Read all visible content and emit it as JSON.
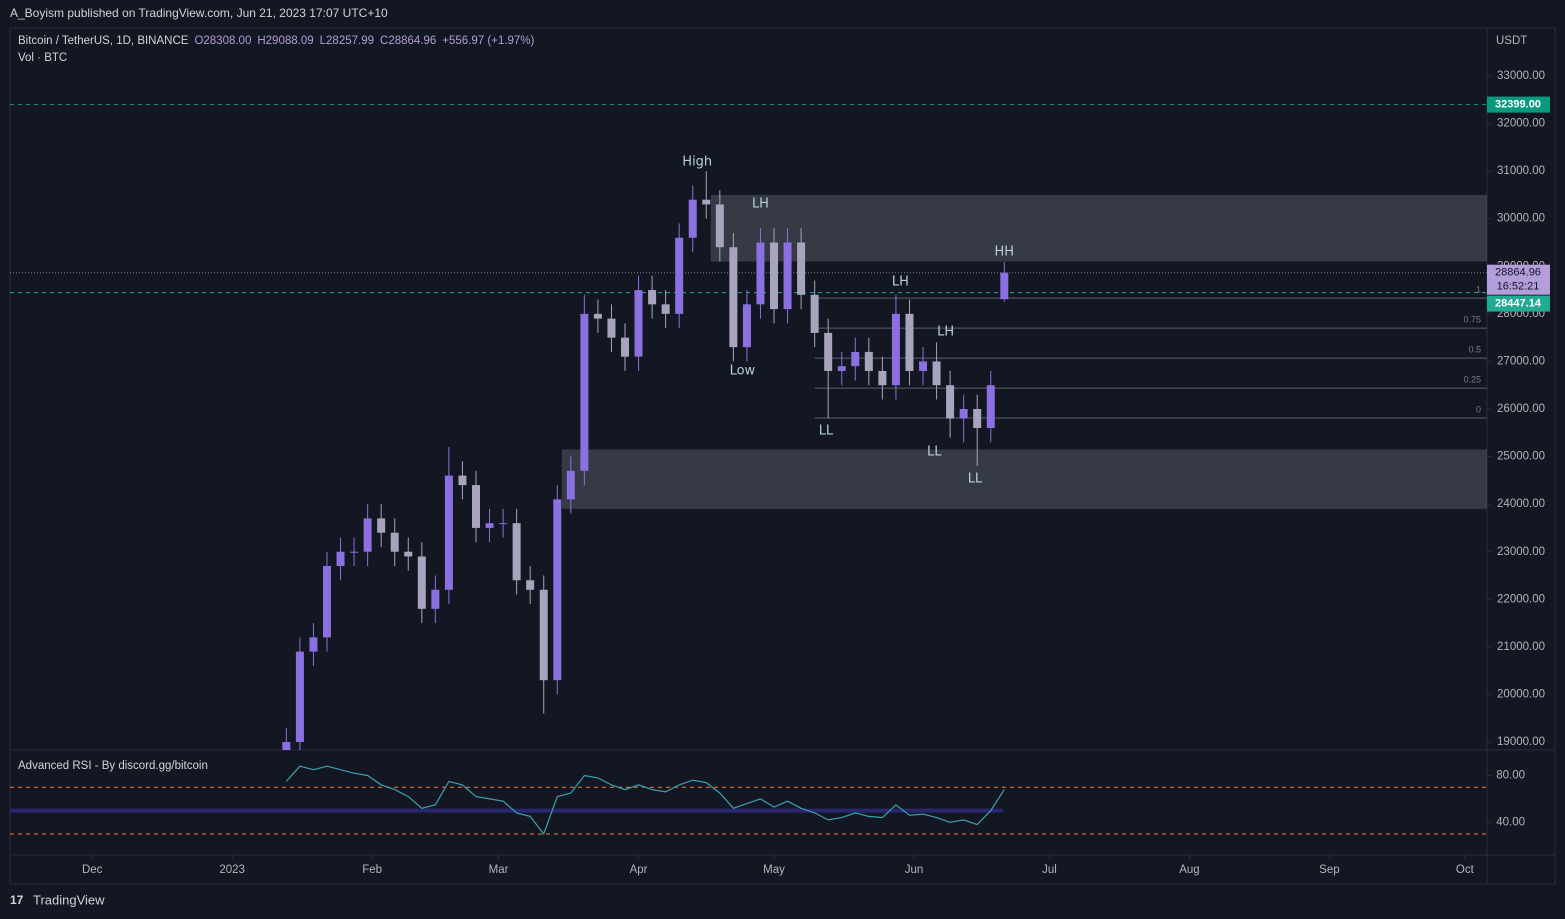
{
  "header": {
    "published": "A_Boyism published on TradingView.com, Jun 21, 2023 17:07 UTC+10"
  },
  "footer": {
    "brand": "TradingView"
  },
  "chart_data": [
    {
      "type": "candlestick",
      "symbol": "Bitcoin / TetherUS, 1D, BINANCE",
      "ohlc_legend": [
        "O28308.00",
        "H29088.09",
        "L28257.99",
        "C28864.96",
        "+556.97 (+1.97%)"
      ],
      "volume_label": "Vol · BTC",
      "axis_unit": "USDT",
      "up_color": "#8c6fe0",
      "down_color": "#a9a4bd",
      "x": [
        43,
        46,
        49,
        52,
        55,
        58,
        61,
        64,
        67,
        70,
        73,
        76,
        79,
        82,
        85,
        88,
        91,
        94,
        97,
        100,
        103,
        106,
        109,
        112,
        115,
        118,
        121,
        124,
        127,
        130,
        133,
        136,
        139,
        142,
        145,
        148,
        151,
        154,
        157,
        160,
        163,
        166,
        169,
        172,
        175,
        178,
        181,
        184,
        187,
        190,
        193,
        196,
        199,
        202
      ],
      "open": [
        18500,
        19000,
        20900,
        21200,
        22700,
        23000,
        23000,
        23700,
        23400,
        23000,
        22900,
        21800,
        22200,
        24600,
        24400,
        23500,
        23600,
        23600,
        22400,
        22200,
        20300,
        24100,
        24700,
        28000,
        27900,
        27500,
        27100,
        28500,
        28200,
        28000,
        29600,
        30400,
        30300,
        29400,
        27300,
        28200,
        29500,
        28100,
        29500,
        28400,
        27600,
        26800,
        26900,
        27200,
        26800,
        26500,
        28000,
        26800,
        27000,
        26500,
        25800,
        26000,
        25600,
        28308
      ],
      "high": [
        19300,
        21200,
        21500,
        23000,
        23300,
        23300,
        24000,
        24000,
        23700,
        23300,
        23200,
        22500,
        25200,
        24900,
        24700,
        23900,
        23900,
        23900,
        22700,
        22500,
        24400,
        25000,
        28400,
        28300,
        28200,
        27800,
        28800,
        28800,
        28500,
        29900,
        30700,
        31000,
        30600,
        29700,
        28500,
        29800,
        29800,
        29800,
        29800,
        28700,
        27900,
        27200,
        27500,
        27500,
        27100,
        28400,
        28300,
        27300,
        27400,
        26800,
        26300,
        26300,
        26800,
        29088.09
      ],
      "low": [
        18200,
        18700,
        20600,
        20900,
        22400,
        22700,
        22700,
        23100,
        22700,
        22600,
        21500,
        21500,
        21900,
        24100,
        23200,
        23200,
        23300,
        22100,
        21900,
        19600,
        20000,
        23800,
        24400,
        27600,
        27200,
        26800,
        26800,
        27900,
        27700,
        27700,
        29300,
        30000,
        29100,
        27000,
        27000,
        27900,
        27800,
        27800,
        28100,
        27300,
        25800,
        26500,
        26600,
        26500,
        26200,
        26200,
        26500,
        26500,
        26200,
        25400,
        25300,
        24800,
        25300,
        28257.99
      ],
      "close": [
        19000,
        20900,
        21200,
        22700,
        23000,
        23000,
        23700,
        23400,
        23000,
        22900,
        21800,
        22200,
        24600,
        24400,
        23500,
        23600,
        23600,
        22400,
        22200,
        20300,
        24100,
        24700,
        28000,
        27900,
        27500,
        27100,
        28500,
        28200,
        28000,
        29600,
        30400,
        30300,
        29400,
        27300,
        28200,
        29500,
        28100,
        29500,
        28400,
        27600,
        26800,
        26900,
        27200,
        26800,
        26500,
        28000,
        26800,
        27000,
        26500,
        25800,
        26000,
        25600,
        26500,
        28864.96
      ],
      "xlim": [
        -18.2,
        308.9
      ],
      "ylim": [
        18832,
        34009
      ],
      "yticks": [
        {
          "value": 19000,
          "label": "19000.00"
        },
        {
          "value": 20000,
          "label": "20000.00"
        },
        {
          "value": 21000,
          "label": "21000.00"
        },
        {
          "value": 22000,
          "label": "22000.00"
        },
        {
          "value": 23000,
          "label": "23000.00"
        },
        {
          "value": 24000,
          "label": "24000.00"
        },
        {
          "value": 25000,
          "label": "25000.00"
        },
        {
          "value": 26000,
          "label": "26000.00"
        },
        {
          "value": 27000,
          "label": "27000.00"
        },
        {
          "value": 28000,
          "label": "28000.00"
        },
        {
          "value": 29000,
          "label": "29000.00"
        },
        {
          "value": 30000,
          "label": "30000.00"
        },
        {
          "value": 31000,
          "label": "31000.00"
        },
        {
          "value": 32000,
          "label": "32000.00"
        },
        {
          "value": 33000,
          "label": "33000.00"
        }
      ],
      "zones": [
        {
          "from": 137,
          "top": 30500,
          "bottom": 29100
        },
        {
          "from": 104,
          "top": 25150,
          "bottom": 23900
        }
      ],
      "levels": [
        {
          "value": 32399,
          "label": "32399.00",
          "color": "#089981"
        },
        {
          "value": 28447.14,
          "label": "28447.14",
          "color": "#22ab94"
        }
      ],
      "last_price": {
        "value": 28864.96,
        "label": "28864.96",
        "timer": "16:52:21",
        "color": "#b39ddb"
      },
      "fib": {
        "from": 160,
        "levels": [
          {
            "value": 28330,
            "label": "1"
          },
          {
            "value": 27700,
            "label": "0.75"
          },
          {
            "value": 27070,
            "label": "0.5"
          },
          {
            "value": 26440,
            "label": "0.25"
          },
          {
            "value": 25810,
            "label": "0"
          }
        ]
      },
      "annotations": [
        {
          "text": "High",
          "x": 134,
          "y": 31190
        },
        {
          "text": "LH",
          "x": 148,
          "y": 30310
        },
        {
          "text": "Low",
          "x": 144,
          "y": 26800
        },
        {
          "text": "LH",
          "x": 179,
          "y": 28670
        },
        {
          "text": "LL",
          "x": 162.5,
          "y": 25540
        },
        {
          "text": "LH",
          "x": 189,
          "y": 27620
        },
        {
          "text": "LL",
          "x": 186.5,
          "y": 25100
        },
        {
          "text": "LL",
          "x": 195.5,
          "y": 24530
        },
        {
          "text": "HH",
          "x": 202,
          "y": 29300
        }
      ]
    },
    {
      "type": "line",
      "title": "Advanced RSI - By discord.gg/bitcoin",
      "color": "#3e9fb2",
      "x": [
        43,
        46,
        49,
        52,
        55,
        58,
        61,
        64,
        67,
        70,
        73,
        76,
        79,
        82,
        85,
        88,
        91,
        94,
        97,
        100,
        103,
        106,
        109,
        112,
        115,
        118,
        121,
        124,
        127,
        130,
        133,
        136,
        139,
        142,
        145,
        148,
        151,
        154,
        157,
        160,
        163,
        166,
        169,
        172,
        175,
        178,
        181,
        184,
        187,
        190,
        193,
        196,
        199,
        202
      ],
      "values": [
        75,
        88,
        85,
        88,
        85,
        82,
        80,
        72,
        68,
        62,
        52,
        55,
        75,
        72,
        62,
        60,
        58,
        48,
        45,
        30,
        62,
        65,
        80,
        78,
        72,
        68,
        72,
        68,
        66,
        72,
        76,
        74,
        65,
        52,
        56,
        60,
        53,
        58,
        52,
        48,
        42,
        44,
        48,
        45,
        44,
        55,
        46,
        47,
        44,
        40,
        42,
        38,
        50,
        68
      ],
      "bands": [
        70,
        30
      ],
      "midline": 50,
      "xlim": [
        -18.2,
        308.9
      ],
      "xticks": [
        {
          "value": 0,
          "label": "Dec"
        },
        {
          "value": 31,
          "label": "2023"
        },
        {
          "value": 62,
          "label": "Feb"
        },
        {
          "value": 90,
          "label": "Mar"
        },
        {
          "value": 121,
          "label": "Apr"
        },
        {
          "value": 151,
          "label": "May"
        },
        {
          "value": 182,
          "label": "Jun"
        },
        {
          "value": 212,
          "label": "Jul"
        },
        {
          "value": 243,
          "label": "Aug"
        },
        {
          "value": 274,
          "label": "Sep"
        },
        {
          "value": 304,
          "label": "Oct"
        }
      ],
      "ylim": [
        12,
        101
      ],
      "yticks": [
        {
          "value": 40,
          "label": "40.00"
        },
        {
          "value": 80,
          "label": "80.00"
        }
      ]
    }
  ]
}
